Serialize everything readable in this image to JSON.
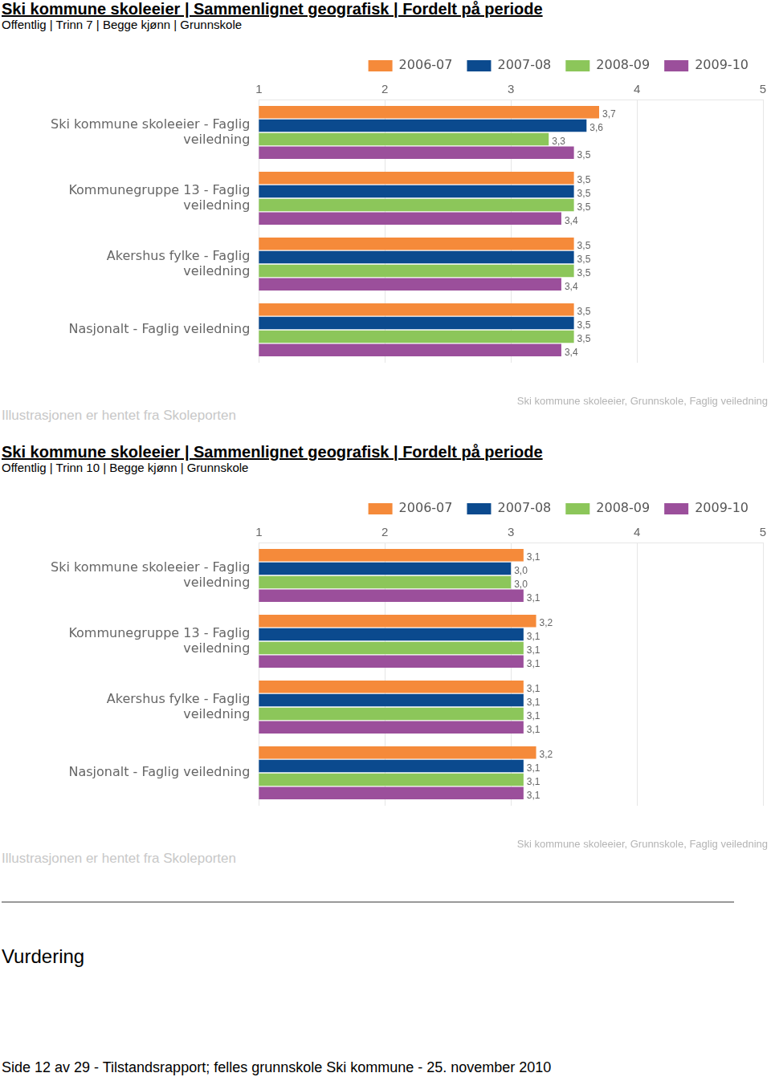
{
  "chart_data": [
    {
      "type": "bar",
      "orientation": "horizontal",
      "title": "Ski kommune skoleeier | Sammenlignet geografisk | Fordelt på periode",
      "subtitle": "Offentlig | Trinn 7 | Begge kjønn | Grunnskole",
      "categories": [
        "Ski kommune skoleeier - Faglig veiledning",
        "Kommunegruppe 13 - Faglig veiledning",
        "Akershus fylke - Faglig veiledning",
        "Nasjonalt - Faglig veiledning"
      ],
      "series": [
        {
          "name": "2006-07",
          "color": "#f58a3a",
          "values": [
            3.7,
            3.5,
            3.5,
            3.5
          ],
          "value_labels": [
            "3,7",
            "3,5",
            "3,5",
            "3,5"
          ]
        },
        {
          "name": "2007-08",
          "color": "#0b4a8e",
          "values": [
            3.6,
            3.5,
            3.5,
            3.5
          ],
          "value_labels": [
            "3,6",
            "3,5",
            "3,5",
            "3,5"
          ]
        },
        {
          "name": "2008-09",
          "color": "#8cc65a",
          "values": [
            3.3,
            3.5,
            3.5,
            3.5
          ],
          "value_labels": [
            "3,3",
            "3,5",
            "3,5",
            "3,5"
          ]
        },
        {
          "name": "2009-10",
          "color": "#9b4f9b",
          "values": [
            3.5,
            3.4,
            3.4,
            3.4
          ],
          "value_labels": [
            "3,5",
            "3,4",
            "3,4",
            "3,4"
          ]
        }
      ],
      "xlim": [
        1,
        5
      ],
      "xticks": [
        1,
        2,
        3,
        4,
        5
      ],
      "grid": true,
      "data_labels": true,
      "legend": "top",
      "annotations": [
        "Illustrasjonen er hentet fra Skoleporten",
        "Ski kommune skoleeier, Grunnskole, Faglig veiledning"
      ]
    },
    {
      "type": "bar",
      "orientation": "horizontal",
      "title": "Ski kommune skoleeier | Sammenlignet geografisk | Fordelt på periode",
      "subtitle": "Offentlig | Trinn 10 | Begge kjønn | Grunnskole",
      "categories": [
        "Ski kommune skoleeier - Faglig veiledning",
        "Kommunegruppe 13 - Faglig veiledning",
        "Akershus fylke - Faglig veiledning",
        "Nasjonalt - Faglig veiledning"
      ],
      "series": [
        {
          "name": "2006-07",
          "color": "#f58a3a",
          "values": [
            3.1,
            3.2,
            3.1,
            3.2
          ],
          "value_labels": [
            "3,1",
            "3,2",
            "3,1",
            "3,2"
          ]
        },
        {
          "name": "2007-08",
          "color": "#0b4a8e",
          "values": [
            3.0,
            3.1,
            3.1,
            3.1
          ],
          "value_labels": [
            "3,0",
            "3,1",
            "3,1",
            "3,1"
          ]
        },
        {
          "name": "2008-09",
          "color": "#8cc65a",
          "values": [
            3.0,
            3.1,
            3.1,
            3.1
          ],
          "value_labels": [
            "3,0",
            "3,1",
            "3,1",
            "3,1"
          ]
        },
        {
          "name": "2009-10",
          "color": "#9b4f9b",
          "values": [
            3.1,
            3.1,
            3.1,
            3.1
          ],
          "value_labels": [
            "3,1",
            "3,1",
            "3,1",
            "3,1"
          ]
        }
      ],
      "xlim": [
        1,
        5
      ],
      "xticks": [
        1,
        2,
        3,
        4,
        5
      ],
      "grid": true,
      "data_labels": true,
      "legend": "top",
      "annotations": [
        "Illustrasjonen er hentet fra Skoleporten",
        "Ski kommune skoleeier, Grunnskole, Faglig veiledning"
      ]
    }
  ],
  "document": {
    "heading": "Vurdering",
    "footer": "Side 12 av 29 - Tilstandsrapport; felles grunnskole Ski kommune - 25. november 2010"
  }
}
